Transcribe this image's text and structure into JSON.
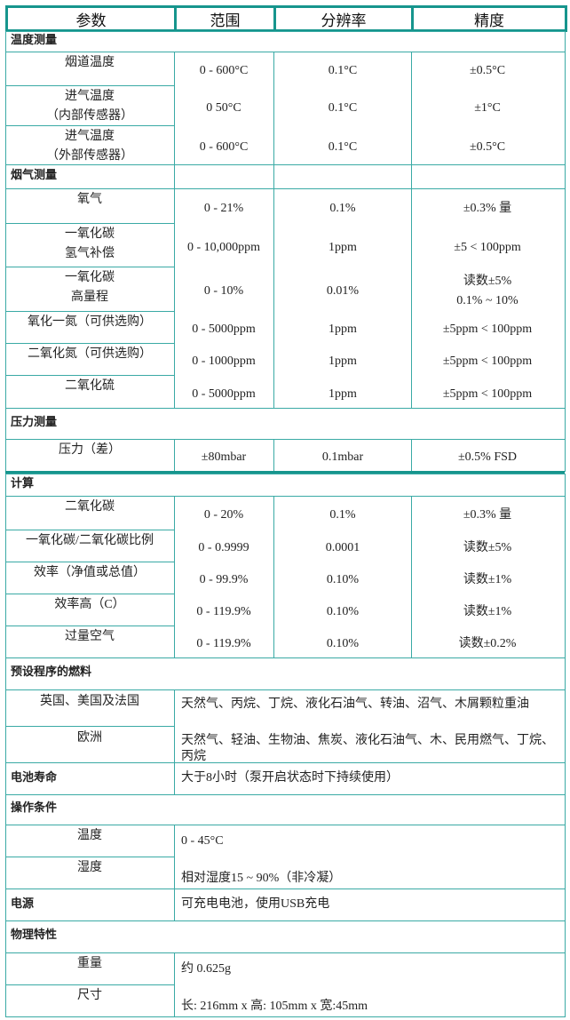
{
  "header": [
    "参数",
    "范围",
    "分辨率",
    "精度"
  ],
  "sections": [
    {
      "title": "温度测量",
      "rows": [
        {
          "label": [
            "烟道温度"
          ],
          "range": "0 - 600°C",
          "resolution": "0.1°C",
          "accuracy": [
            "±0.5°C"
          ]
        },
        {
          "label": [
            "进气温度",
            "（内部传感器）"
          ],
          "range": "0 50°C",
          "resolution": "0.1°C",
          "accuracy": [
            "±1°C"
          ]
        },
        {
          "label": [
            "进气温度",
            "（外部传感器）"
          ],
          "range": "0 - 600°C",
          "resolution": "0.1°C",
          "accuracy": [
            "±0.5°C"
          ]
        }
      ]
    },
    {
      "title": "烟气测量",
      "rows": [
        {
          "label": [
            "氧气"
          ],
          "range": "0 - 21%",
          "resolution": "0.1%",
          "accuracy": [
            "±0.3% 量"
          ]
        },
        {
          "label": [
            "一氧化碳",
            "氢气补偿"
          ],
          "range": "0 - 10,000ppm",
          "resolution": "1ppm",
          "accuracy": [
            "±5 < 100ppm"
          ]
        },
        {
          "label": [
            "一氧化碳",
            "高量程"
          ],
          "range": "0 - 10%",
          "resolution": "0.01%",
          "accuracy": [
            "读数±5%",
            "0.1% ~ 10%"
          ]
        },
        {
          "label": [
            "氧化一氮（可供选购）"
          ],
          "range": "0 - 5000ppm",
          "resolution": "1ppm",
          "accuracy": [
            "±5ppm < 100ppm"
          ]
        },
        {
          "label": [
            "二氧化氮（可供选购）"
          ],
          "range": "0 - 1000ppm",
          "resolution": "1ppm",
          "accuracy": [
            "±5ppm < 100ppm"
          ]
        },
        {
          "label": [
            "二氧化硫"
          ],
          "range": "0 - 5000ppm",
          "resolution": "1ppm",
          "accuracy": [
            "±5ppm < 100ppm"
          ]
        }
      ]
    },
    {
      "title": "压力测量",
      "rows": [
        {
          "label": [
            "压力（差）"
          ],
          "range": "±80mbar",
          "resolution": "0.1mbar",
          "accuracy": [
            "±0.5% FSD"
          ]
        }
      ]
    },
    {
      "title": "计算",
      "rows": [
        {
          "label": [
            "二氧化碳"
          ],
          "range": "0 - 20%",
          "resolution": "0.1%",
          "accuracy": [
            "±0.3% 量"
          ]
        },
        {
          "label": [
            "一氧化碳/二氧化碳比例"
          ],
          "range": "0 - 0.9999",
          "resolution": "0.0001",
          "accuracy": [
            "读数±5%"
          ]
        },
        {
          "label": [
            "效率（净值或总值）"
          ],
          "range": "0 - 99.9%",
          "resolution": "0.10%",
          "accuracy": [
            "读数±1%"
          ]
        },
        {
          "label": [
            "效率高（C）"
          ],
          "range": "0 - 119.9%",
          "resolution": "0.10%",
          "accuracy": [
            "读数±1%"
          ]
        },
        {
          "label": [
            "过量空气"
          ],
          "range": "0 - 119.9%",
          "resolution": "0.10%",
          "accuracy": [
            "读数±0.2%"
          ]
        }
      ]
    },
    {
      "title": "预设程序的燃料",
      "rows": [
        {
          "label": [
            "英国、美国及法国"
          ],
          "value": "天然气、丙烷、丁烷、液化石油气、转油、沼气、木屑颗粒重油"
        },
        {
          "label": [
            "欧洲"
          ],
          "value": "天然气、轻油、生物油、焦炭、液化石油气、木、民用燃气、丁烷、丙烷"
        }
      ]
    },
    {
      "title": "电池寿命",
      "value": "大于8小时（泵开启状态时下持续使用）"
    },
    {
      "title": "操作条件",
      "rows": [
        {
          "label": [
            "温度"
          ],
          "value": "0 - 45°C"
        },
        {
          "label": [
            "湿度"
          ],
          "value": "相对湿度15 ~ 90%（非冷凝）"
        }
      ]
    },
    {
      "title": "电源",
      "value": "可充电电池，使用USB充电"
    },
    {
      "title": "物理特性",
      "rows": [
        {
          "label": [
            "重量"
          ],
          "value": "约 0.625g"
        },
        {
          "label": [
            "尺寸"
          ],
          "value": "长: 216mm x 高: 105mm x 宽:45mm"
        }
      ]
    }
  ]
}
